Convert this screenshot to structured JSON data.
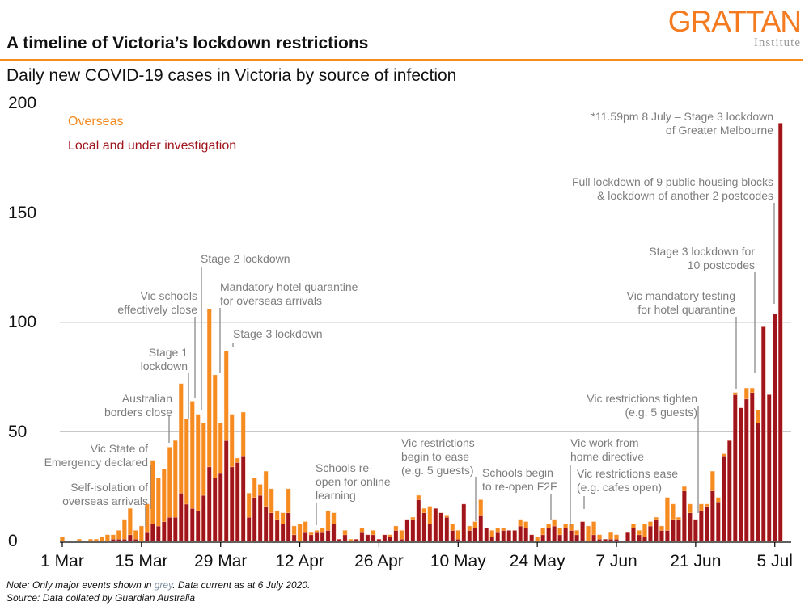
{
  "header": {
    "title": "A timeline of Victoria’s lockdown restrictions",
    "subtitle": "Daily new COVID-19 cases in Victoria by source of infection",
    "logo_word": "GRATTAN",
    "logo_sub": "Institute",
    "brand_color": "#f68b1f"
  },
  "footer": {
    "note_prefix": "Note: Only major events shown in ",
    "note_grey": "grey",
    "note_suffix": ". Data current as at 6 July 2020.",
    "source": "Source: Data collated by Guardian Australia"
  },
  "chart_data": {
    "type": "bar",
    "stacked": true,
    "title": "Daily new COVID-19 cases in Victoria by source of infection",
    "x_start": "2020-03-01",
    "x_end": "2020-07-06",
    "x_tick_labels": [
      "1 Mar",
      "15 Mar",
      "29 Mar",
      "12 Apr",
      "26 Apr",
      "10 May",
      "24 May",
      "7 Jun",
      "21 Jun",
      "5 Jul"
    ],
    "y_ticks": [
      0,
      50,
      100,
      150,
      200
    ],
    "ylim": [
      0,
      200
    ],
    "grid": "horizontal",
    "legend": "top-left",
    "series": [
      {
        "name": "Local and under investigation",
        "color": "#a0141c",
        "values": [
          0,
          0,
          0,
          0,
          0,
          0,
          0,
          0,
          0,
          1,
          1,
          1,
          3,
          1,
          0,
          4,
          8,
          7,
          9,
          11,
          11,
          22,
          17,
          15,
          14,
          21,
          34,
          29,
          31,
          46,
          34,
          36,
          39,
          11,
          20,
          21,
          16,
          13,
          10,
          8,
          13,
          3,
          0,
          4,
          3,
          4,
          4,
          5,
          8,
          1,
          3,
          0,
          1,
          4,
          3,
          3,
          1,
          3,
          2,
          5,
          1,
          10,
          10,
          19,
          13,
          8,
          15,
          13,
          11,
          5,
          1,
          17,
          5,
          6,
          12,
          6,
          2,
          4,
          5,
          5,
          5,
          7,
          6,
          3,
          0,
          3,
          6,
          7,
          3,
          6,
          5,
          3,
          9,
          0,
          3,
          1,
          1,
          1,
          1,
          0,
          4,
          6,
          3,
          2,
          7,
          10,
          5,
          5,
          10,
          10,
          23,
          13,
          10,
          14,
          16,
          23,
          18,
          39,
          46,
          67,
          61,
          65,
          68,
          54,
          98,
          67,
          104,
          191
        ]
      },
      {
        "name": "Overseas",
        "color": "#f68b1f",
        "values": [
          2,
          0,
          0,
          1,
          0,
          1,
          1,
          2,
          3,
          2,
          4,
          9,
          12,
          4,
          7,
          13,
          29,
          22,
          24,
          32,
          35,
          50,
          39,
          49,
          44,
          33,
          72,
          47,
          23,
          41,
          24,
          2,
          20,
          11,
          9,
          5,
          16,
          11,
          4,
          5,
          11,
          4,
          8,
          5,
          1,
          1,
          2,
          9,
          5,
          0,
          2,
          1,
          0,
          2,
          0,
          2,
          0,
          0,
          1,
          2,
          4,
          0,
          1,
          2,
          2,
          8,
          0,
          0,
          1,
          3,
          4,
          0,
          2,
          3,
          7,
          0,
          3,
          2,
          1,
          0,
          0,
          3,
          3,
          0,
          2,
          3,
          2,
          3,
          3,
          2,
          3,
          2,
          0,
          7,
          6,
          2,
          0,
          3,
          2,
          0,
          0,
          2,
          2,
          6,
          2,
          1,
          2,
          15,
          7,
          1,
          2,
          4,
          0,
          3,
          1,
          9,
          2,
          1,
          0,
          1,
          0,
          5,
          2,
          6,
          0,
          0,
          0,
          0
        ]
      }
    ],
    "annotations": [
      {
        "lines": [
          "Self-isolation of",
          "overseas arrivals"
        ]
      },
      {
        "lines": [
          "Vic State of",
          "Emergency declared"
        ]
      },
      {
        "lines": [
          "Australian",
          "borders close"
        ]
      },
      {
        "lines": [
          "Stage 1",
          "lockdown"
        ]
      },
      {
        "lines": [
          "Vic schools",
          "effectively close"
        ]
      },
      {
        "lines": [
          "Stage 2 lockdown"
        ]
      },
      {
        "lines": [
          "Mandatory hotel quarantine",
          "for overseas arrivals"
        ]
      },
      {
        "lines": [
          "Stage 3 lockdown"
        ]
      },
      {
        "lines": [
          "Schools re-",
          "open for online",
          "learning"
        ]
      },
      {
        "lines": [
          "Vic restrictions",
          "begin to ease",
          "(e.g. 5 guests)"
        ]
      },
      {
        "lines": [
          "Schools begin",
          "to re-open F2F"
        ]
      },
      {
        "lines": [
          "Vic work from",
          "home directive"
        ]
      },
      {
        "lines": [
          "Vic restrictions ease",
          "(e.g. cafes open)"
        ]
      },
      {
        "lines": [
          "Vic restrictions tighten",
          "(e.g. 5 guests)"
        ]
      },
      {
        "lines": [
          "Vic mandatory testing",
          "for hotel quarantine"
        ]
      },
      {
        "lines": [
          "Stage 3 lockdown for",
          "10 postcodes"
        ]
      },
      {
        "lines": [
          "Full lockdown of 9 public housing blocks",
          "& lockdown of another 2 postcodes"
        ]
      },
      {
        "lines": [
          "*11.59pm 8 July – Stage 3 lockdown",
          "of Greater Melbourne"
        ]
      }
    ]
  }
}
